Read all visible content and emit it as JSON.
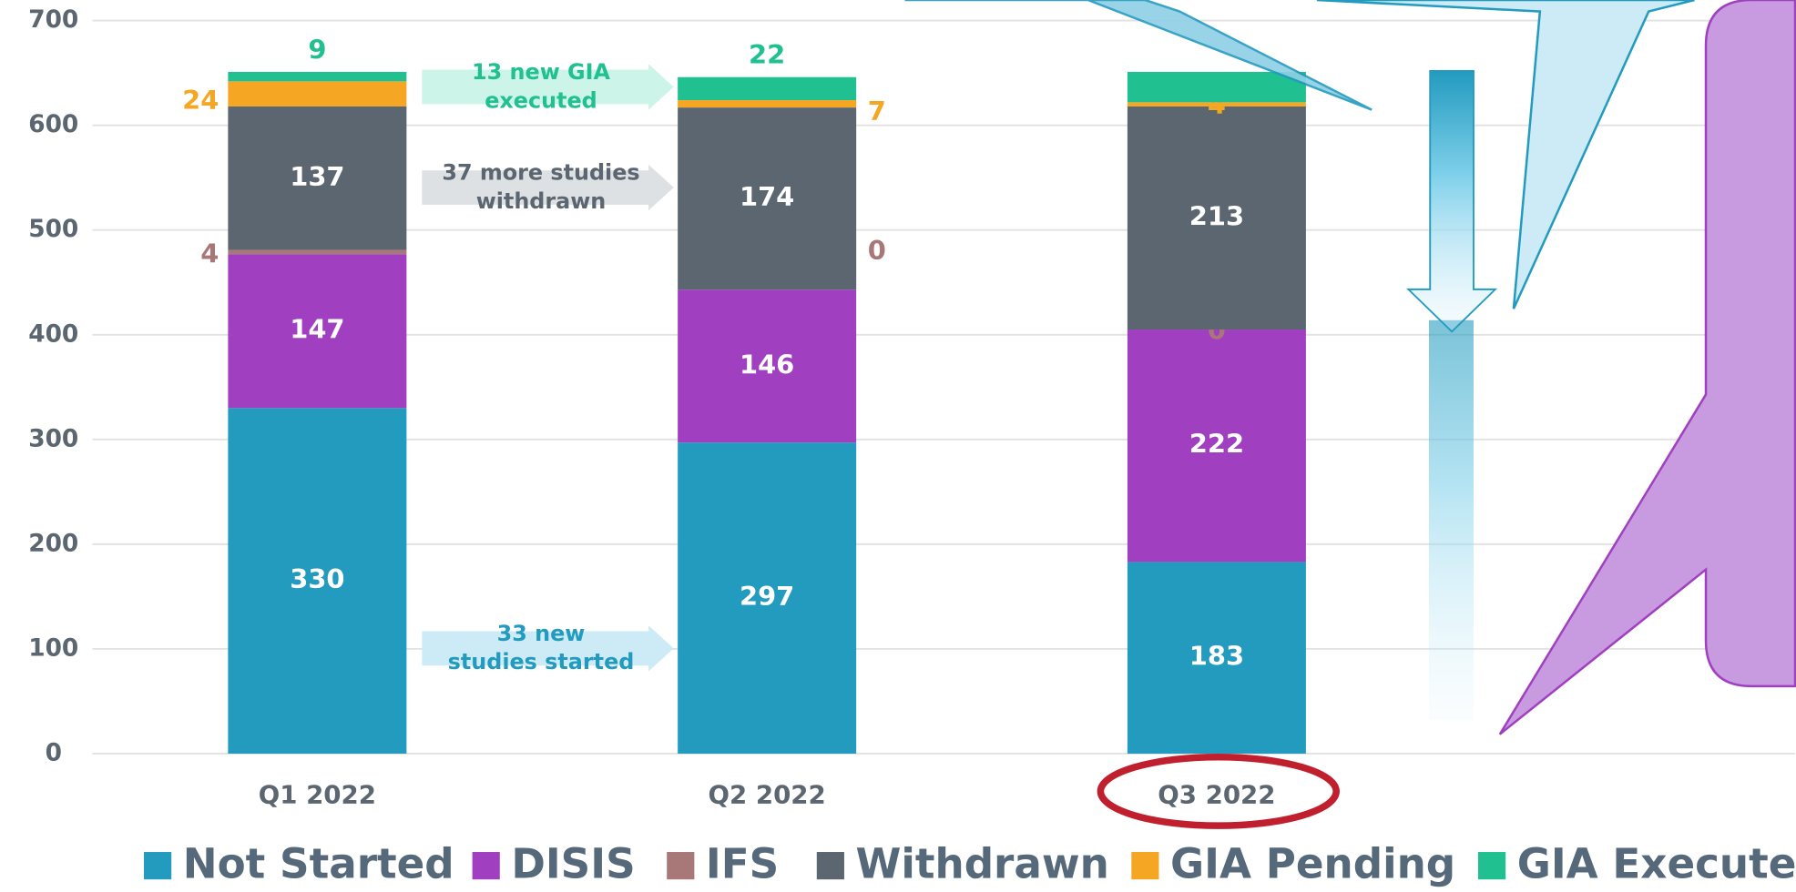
{
  "chart_data": {
    "type": "bar",
    "stacked": true,
    "categories": [
      "Q1 2022",
      "Q2 2022",
      "Q3 2022"
    ],
    "series": [
      {
        "name": "Not Started",
        "color": "#239bbf",
        "values": [
          330,
          297,
          183
        ]
      },
      {
        "name": "DISIS",
        "color": "#a040c0",
        "values": [
          147,
          146,
          222
        ]
      },
      {
        "name": "IFS",
        "color": "#a87878",
        "values": [
          4,
          0,
          0
        ]
      },
      {
        "name": "Withdrawn",
        "color": "#5b6670",
        "values": [
          137,
          174,
          213
        ]
      },
      {
        "name": "GIA Pending",
        "color": "#f5a623",
        "values": [
          24,
          7,
          4
        ]
      },
      {
        "name": "GIA Executed",
        "color": "#20c090",
        "values": [
          9,
          22,
          29
        ],
        "value_labels": [
          "9",
          "22",
          null
        ]
      }
    ],
    "ylim": [
      0,
      700
    ],
    "yticks": [
      0,
      100,
      200,
      300,
      400,
      500,
      600,
      700
    ],
    "grid": true,
    "legend": "bottom",
    "annotations": [
      {
        "lines": [
          "13 new GIA",
          "executed"
        ],
        "color": "#20c090"
      },
      {
        "lines": [
          "37 more studies",
          "withdrawn"
        ],
        "color": "#5b6670"
      },
      {
        "lines": [
          "33 new",
          "studies started"
        ],
        "color": "#239bbf"
      }
    ]
  }
}
